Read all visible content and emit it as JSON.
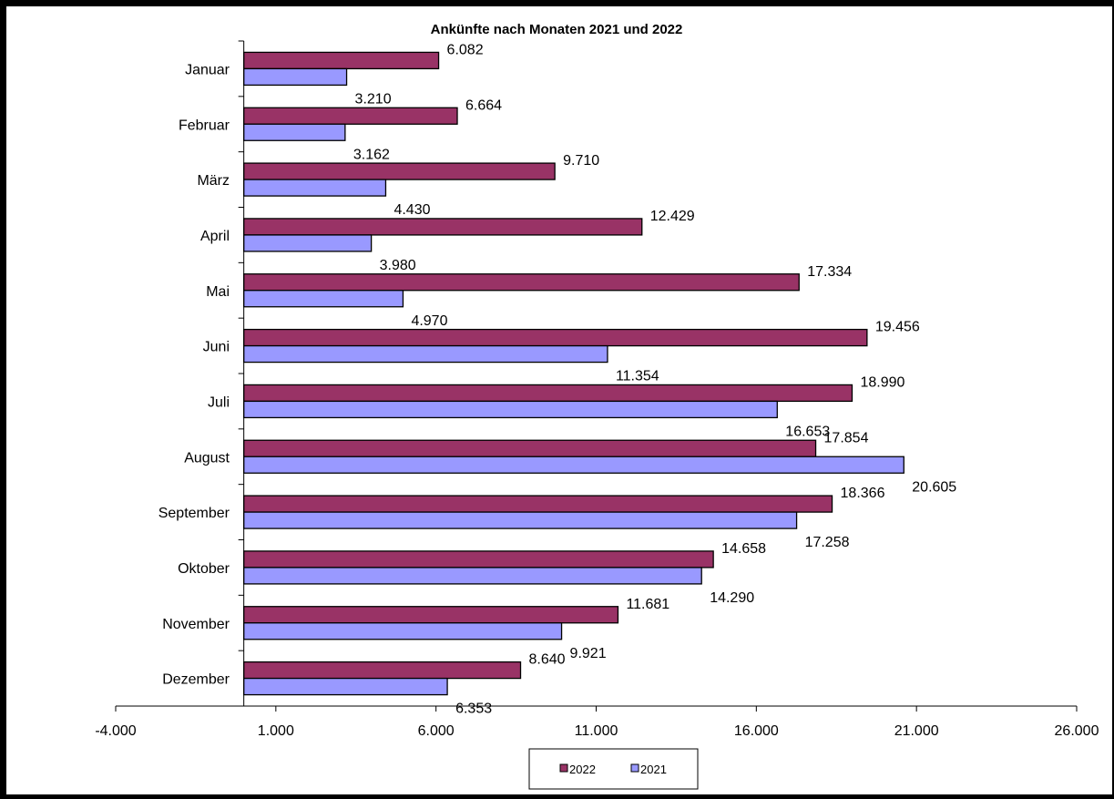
{
  "chart_data": {
    "type": "bar",
    "orientation": "horizontal",
    "title": "Ankünfte nach Monaten 2021 und 2022",
    "categories": [
      "Januar",
      "Februar",
      "März",
      "April",
      "Mai",
      "Juni",
      "Juli",
      "August",
      "September",
      "Oktober",
      "November",
      "Dezember"
    ],
    "series": [
      {
        "name": "2022",
        "color": "#993366",
        "values": [
          6082,
          6664,
          9710,
          12429,
          17334,
          19456,
          18990,
          17854,
          18366,
          14658,
          11681,
          8640
        ],
        "labels": [
          "6.082",
          "6.664",
          "9.710",
          "12.429",
          "17.334",
          "19.456",
          "18.990",
          "17.854",
          "18.366",
          "14.658",
          "11.681",
          "8.640"
        ]
      },
      {
        "name": "2021",
        "color": "#9999ff",
        "values": [
          3210,
          3162,
          4430,
          3980,
          4970,
          11354,
          16653,
          20605,
          17258,
          14290,
          9921,
          6353
        ],
        "labels": [
          "3.210",
          "3.162",
          "4.430",
          "3.980",
          "4.970",
          "11.354",
          "16.653",
          "20.605",
          "17.258",
          "14.290",
          "9.921",
          "6.353"
        ]
      }
    ],
    "xlim": [
      -4000,
      26000
    ],
    "x_ticks": [
      -4000,
      1000,
      6000,
      11000,
      16000,
      21000,
      26000
    ],
    "x_tick_labels": [
      "-4.000",
      "1.000",
      "6.000",
      "11.000",
      "16.000",
      "21.000",
      "26.000"
    ],
    "value_axis_crosses_at": 0,
    "grid": false,
    "legend_position": "bottom"
  }
}
